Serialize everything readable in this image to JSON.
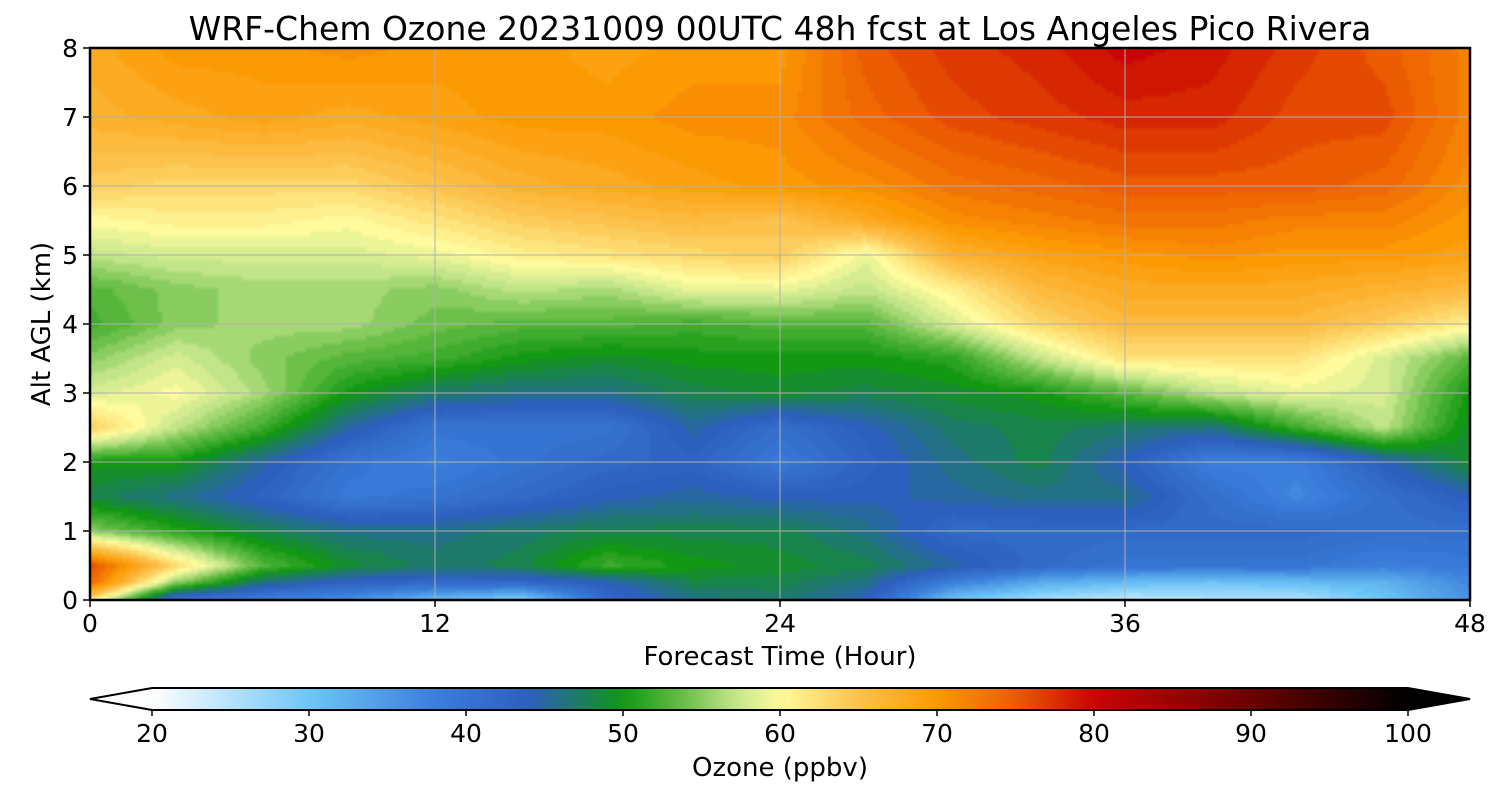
{
  "chart_data": {
    "type": "heatmap",
    "title": "WRF-Chem Ozone  20231009 00UTC 48h fcst at Los Angeles Pico Rivera",
    "xlabel": "Forecast Time (Hour)",
    "ylabel": "Alt AGL (km)",
    "xlim": [
      0,
      48
    ],
    "ylim": [
      0,
      8
    ],
    "x_ticks": [
      "0",
      "12",
      "24",
      "36",
      "48"
    ],
    "y_ticks": [
      "0",
      "1",
      "2",
      "3",
      "4",
      "5",
      "6",
      "7",
      "8"
    ],
    "grid": true,
    "x_hours": [
      0,
      3,
      6,
      9,
      12,
      15,
      18,
      21,
      24,
      27,
      30,
      33,
      36,
      39,
      42,
      45,
      48
    ],
    "altitudes_km": [
      0,
      0.25,
      0.5,
      1,
      1.5,
      2,
      2.5,
      3,
      3.5,
      4,
      4.5,
      5,
      5.5,
      6,
      7,
      8
    ],
    "ozone_ppbv": [
      [
        62,
        40,
        38,
        36,
        31,
        28,
        42,
        46,
        47,
        44,
        30,
        26,
        24,
        25,
        25,
        30,
        36
      ],
      [
        74,
        55,
        46,
        43,
        42,
        42,
        44,
        48,
        48,
        46,
        38,
        33,
        31,
        30,
        31,
        32,
        37
      ],
      [
        76,
        63,
        53,
        49,
        47,
        48,
        52,
        50,
        49,
        48,
        45,
        42,
        40,
        40,
        40,
        38,
        39
      ],
      [
        55,
        51,
        48,
        46,
        46,
        47,
        48,
        48,
        48,
        46,
        42,
        42,
        42,
        42,
        42,
        41,
        41
      ],
      [
        48,
        46,
        43,
        39,
        40,
        42,
        44,
        45,
        44,
        44,
        45,
        46,
        46,
        41,
        37,
        41,
        44
      ],
      [
        50,
        50,
        45,
        40,
        38,
        40,
        42,
        43,
        39,
        43,
        46,
        48,
        44,
        38,
        38,
        44,
        49
      ],
      [
        64,
        57,
        52,
        45,
        40,
        40,
        40,
        45,
        41,
        44,
        47,
        48,
        47,
        46,
        52,
        57,
        49
      ],
      [
        58,
        60,
        56,
        50,
        47,
        46,
        46,
        48,
        49,
        48,
        49,
        50,
        53,
        57,
        59,
        58,
        50
      ],
      [
        55,
        58,
        55,
        53,
        52,
        50,
        49,
        50,
        50,
        50,
        51,
        57,
        62,
        62,
        62,
        58,
        53
      ],
      [
        52,
        55,
        56,
        56,
        54,
        53,
        53,
        52,
        53,
        53,
        58,
        63,
        66,
        66,
        66,
        64,
        61
      ],
      [
        53,
        55,
        56,
        56,
        55,
        57,
        56,
        59,
        59,
        57,
        61,
        66,
        68,
        68,
        68,
        67,
        66
      ],
      [
        57,
        58,
        58,
        58,
        59,
        61,
        62,
        63,
        64,
        59,
        67,
        69,
        70,
        71,
        70,
        70,
        69
      ],
      [
        60,
        61,
        61,
        60,
        62,
        64,
        65,
        66,
        65,
        68,
        71,
        72,
        73,
        73,
        72,
        72,
        70
      ],
      [
        64,
        63,
        63,
        63,
        65,
        67,
        68,
        69,
        70,
        71,
        73,
        74,
        75,
        75,
        75,
        74,
        71
      ],
      [
        67,
        68,
        69,
        68,
        69,
        70,
        70,
        71,
        71,
        74,
        76,
        77,
        78,
        78,
        76,
        76,
        72
      ],
      [
        68,
        70,
        70,
        71,
        70,
        70,
        69,
        70,
        70,
        75,
        77,
        78,
        80,
        79,
        77,
        75,
        72
      ]
    ],
    "colorbar": {
      "label": "Ozone  (ppbv)",
      "min": 20,
      "max": 100,
      "ticks": [
        "20",
        "30",
        "40",
        "50",
        "60",
        "70",
        "80",
        "90",
        "100"
      ],
      "extend": "both",
      "colormap_stops": [
        {
          "v": 20,
          "color": "#ffffff"
        },
        {
          "v": 30,
          "color": "#6ec6f6"
        },
        {
          "v": 38,
          "color": "#3b7fdb"
        },
        {
          "v": 44,
          "color": "#2d5fbd"
        },
        {
          "v": 47,
          "color": "#1e7a6a"
        },
        {
          "v": 50,
          "color": "#129812"
        },
        {
          "v": 54,
          "color": "#6dc04a"
        },
        {
          "v": 57,
          "color": "#c2e589"
        },
        {
          "v": 60,
          "color": "#fffb9e"
        },
        {
          "v": 65,
          "color": "#fcc24c"
        },
        {
          "v": 70,
          "color": "#fc9a04"
        },
        {
          "v": 75,
          "color": "#ec5c02"
        },
        {
          "v": 80,
          "color": "#c80402"
        },
        {
          "v": 90,
          "color": "#6a0101"
        },
        {
          "v": 100,
          "color": "#000000"
        }
      ]
    }
  }
}
